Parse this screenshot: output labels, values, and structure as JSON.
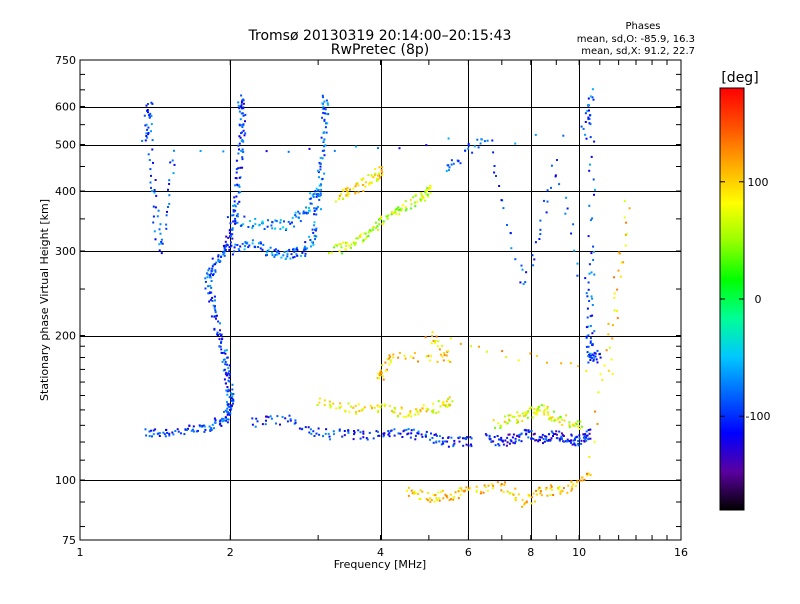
{
  "chart_data": {
    "type": "scatter",
    "title": "Tromsø 20130319 20:14:00–20:15:43",
    "subtitle": "RwPretec (8p)",
    "xlabel": "Frequency [MHz]",
    "ylabel": "Stationary phase Virtual Height [km]",
    "x_scale": "log",
    "y_scale": "log",
    "xlim": [
      1,
      16
    ],
    "ylim": [
      75,
      750
    ],
    "x_ticks": [
      1,
      2,
      4,
      6,
      8,
      10,
      16
    ],
    "y_ticks": [
      75,
      100,
      200,
      300,
      400,
      500,
      600,
      750
    ],
    "grid": true,
    "phase_stats": {
      "heading": "Phases",
      "line_o": "mean, sd,O: -85.9, 16.3",
      "line_x": "mean, sd,X:  91.2, 22.7"
    },
    "colorbar": {
      "label": "[deg]",
      "ticks": [
        100,
        0,
        -100
      ],
      "range": [
        -180,
        180
      ],
      "colors": [
        "#000000",
        "#5a00a0",
        "#0000ff",
        "#0064ff",
        "#00c8ff",
        "#00ff96",
        "#00ff00",
        "#96ff00",
        "#ffff00",
        "#ffaa00",
        "#ff5000",
        "#ff0000"
      ]
    },
    "traces": [
      {
        "mode": "O",
        "phase": -95,
        "points": [
          [
            1.35,
            125
          ],
          [
            1.5,
            126
          ],
          [
            1.7,
            127
          ],
          [
            1.85,
            130
          ],
          [
            1.95,
            135
          ],
          [
            2.0,
            140
          ],
          [
            2.0,
            150
          ],
          [
            1.98,
            165
          ],
          [
            1.95,
            180
          ],
          [
            1.9,
            200
          ],
          [
            1.85,
            230
          ],
          [
            1.8,
            260
          ],
          [
            1.85,
            280
          ],
          [
            1.95,
            300
          ],
          [
            2.0,
            320
          ],
          [
            2.05,
            360
          ],
          [
            2.08,
            420
          ],
          [
            2.1,
            500
          ],
          [
            2.12,
            560
          ],
          [
            2.1,
            620
          ]
        ]
      },
      {
        "mode": "O",
        "phase": -80,
        "points": [
          [
            2.0,
            300
          ],
          [
            2.2,
            310
          ],
          [
            2.4,
            300
          ],
          [
            2.6,
            295
          ],
          [
            2.8,
            300
          ],
          [
            2.95,
            320
          ],
          [
            3.0,
            380
          ],
          [
            3.05,
            450
          ],
          [
            3.1,
            540
          ],
          [
            3.1,
            620
          ]
        ]
      },
      {
        "mode": "O",
        "phase": -70,
        "points": [
          [
            2.0,
            350
          ],
          [
            2.3,
            340
          ],
          [
            2.6,
            340
          ],
          [
            2.8,
            360
          ],
          [
            3.0,
            400
          ]
        ]
      },
      {
        "mode": "X",
        "phase": 60,
        "points": [
          [
            3.2,
            300
          ],
          [
            3.5,
            310
          ],
          [
            3.8,
            330
          ],
          [
            4.1,
            350
          ],
          [
            4.4,
            370
          ],
          [
            4.8,
            385
          ],
          [
            5.0,
            400
          ]
        ]
      },
      {
        "mode": "X",
        "phase": 90,
        "points": [
          [
            3.3,
            390
          ],
          [
            3.5,
            400
          ],
          [
            3.8,
            420
          ],
          [
            4.0,
            440
          ]
        ]
      },
      {
        "mode": "O",
        "phase": -100,
        "points": [
          [
            2.2,
            132
          ],
          [
            2.6,
            133
          ],
          [
            3.0,
            125
          ],
          [
            3.5,
            124
          ],
          [
            4.0,
            124
          ],
          [
            4.5,
            125
          ],
          [
            5.0,
            123
          ],
          [
            5.5,
            120
          ],
          [
            6.0,
            120
          ]
        ]
      },
      {
        "mode": "O",
        "phase": -110,
        "points": [
          [
            6.5,
            122
          ],
          [
            7.0,
            120
          ],
          [
            7.5,
            123
          ],
          [
            8.0,
            125
          ],
          [
            8.5,
            121
          ],
          [
            9.0,
            124
          ],
          [
            9.5,
            122
          ],
          [
            10.0,
            120
          ],
          [
            10.5,
            125
          ]
        ]
      },
      {
        "mode": "X",
        "phase": 80,
        "points": [
          [
            3.0,
            145
          ],
          [
            3.5,
            140
          ],
          [
            4.0,
            142
          ],
          [
            4.5,
            138
          ],
          [
            5.0,
            140
          ],
          [
            5.5,
            145
          ]
        ]
      },
      {
        "mode": "X",
        "phase": 70,
        "points": [
          [
            6.8,
            130
          ],
          [
            7.5,
            135
          ],
          [
            8.0,
            138
          ],
          [
            8.5,
            140
          ],
          [
            9.0,
            135
          ],
          [
            10.0,
            130
          ]
        ]
      },
      {
        "mode": "O",
        "phase": -90,
        "points": [
          [
            1.35,
            500
          ],
          [
            1.38,
            620
          ],
          [
            1.4,
            400
          ],
          [
            1.45,
            300
          ],
          [
            1.55,
            480
          ],
          [
            10.2,
            520
          ],
          [
            10.6,
            650
          ],
          [
            10.6,
            300
          ],
          [
            10.5,
            200
          ],
          [
            10.5,
            180
          ],
          [
            11.0,
            180
          ],
          [
            9.0,
            460
          ],
          [
            7.8,
            250
          ],
          [
            6.5,
            520
          ],
          [
            5.5,
            450
          ]
        ]
      },
      {
        "mode": "X",
        "phase": 100,
        "points": [
          [
            4.5,
            95
          ],
          [
            5.0,
            92
          ],
          [
            5.5,
            93
          ],
          [
            6.0,
            95
          ],
          [
            7.0,
            97
          ],
          [
            7.8,
            90
          ],
          [
            8.5,
            95
          ],
          [
            9.5,
            96
          ],
          [
            10.5,
            104
          ],
          [
            12.5,
            378
          ],
          [
            11.5,
            165
          ],
          [
            5.0,
            200
          ],
          [
            5.5,
            180
          ],
          [
            4.2,
            180
          ],
          [
            4.0,
            165
          ]
        ]
      }
    ]
  }
}
